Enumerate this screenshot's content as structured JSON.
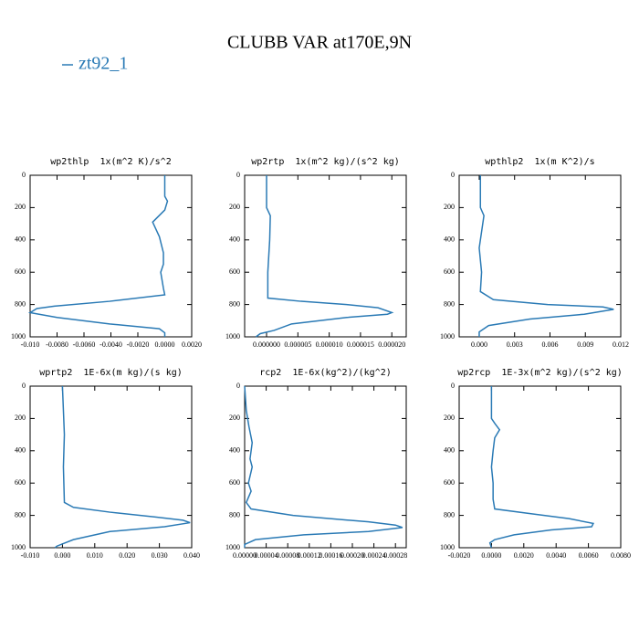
{
  "title": "CLUBB VAR at170E,9N",
  "chart_data": [
    {
      "type": "line",
      "title": "wp2thlp  1x(m^2 K)/s^2",
      "y": [
        0,
        130,
        160,
        215,
        290,
        380,
        480,
        550,
        600,
        700,
        740,
        780,
        810,
        825,
        850,
        880,
        920,
        950,
        975,
        1000
      ],
      "series": [
        {
          "name": "zt92_1",
          "color": "#2a7ab5",
          "values": [
            0,
            0,
            0.0002,
            0,
            -0.0009,
            -0.0004,
            -0.0001,
            -0.0001,
            -0.0003,
            -0.0001,
            0,
            -0.0041,
            -0.0082,
            -0.0095,
            -0.01,
            -0.008,
            -0.0041,
            -0.0004,
            0,
            0
          ]
        }
      ],
      "xlim": [
        -0.01,
        0.002
      ],
      "xticks": [
        {
          "value": -0.01,
          "label": "-0.010"
        },
        {
          "value": -0.008,
          "label": "-0.0080"
        },
        {
          "value": -0.006,
          "label": "-0.0060"
        },
        {
          "value": -0.004,
          "label": "-0.0040"
        },
        {
          "value": -0.002,
          "label": "-0.0020"
        },
        {
          "value": 0,
          "label": "0.0000"
        },
        {
          "value": 0.002,
          "label": "0.0020"
        }
      ],
      "ylim": [
        1000,
        0
      ],
      "yticks": [
        0,
        200,
        400,
        600,
        800,
        1000
      ]
    },
    {
      "type": "line",
      "title": "wp2rtp  1x(m^2 kg)/(s^2 kg)",
      "y": [
        0,
        200,
        250,
        400,
        600,
        760,
        780,
        800,
        820,
        850,
        860,
        880,
        920,
        960,
        980,
        1000
      ],
      "series": [
        {
          "name": "zt92_1",
          "color": "#2a7ab5",
          "values": [
            0,
            0,
            6e-07,
            5e-07,
            2e-07,
            2e-07,
            5.5e-06,
            1.28e-05,
            1.78e-05,
            2e-05,
            1.93e-05,
            1.28e-05,
            4e-06,
            1.2e-06,
            -1e-06,
            -1.7e-06
          ]
        }
      ],
      "xlim": [
        -3.5e-06,
        2.23e-05
      ],
      "xticks": [
        {
          "value": 0,
          "label": "0.000000"
        },
        {
          "value": 5e-06,
          "label": "0.000005"
        },
        {
          "value": 1e-05,
          "label": "0.000010"
        },
        {
          "value": 1.5e-05,
          "label": "0.000015"
        },
        {
          "value": 2e-05,
          "label": "0.000020"
        }
      ],
      "ylim": [
        1000,
        0
      ],
      "yticks": [
        0,
        200,
        400,
        600,
        800,
        1000
      ]
    },
    {
      "type": "line",
      "title": "wpthlp2  1x(m K^2)/s",
      "y": [
        0,
        200,
        250,
        350,
        450,
        600,
        720,
        770,
        800,
        815,
        830,
        860,
        890,
        930,
        970,
        1000
      ],
      "series": [
        {
          "name": "zt92_1",
          "color": "#2a7ab5",
          "values": [
            0.0001,
            0.0001,
            0.0004,
            0.0002,
            0,
            0.0002,
            0.0001,
            0.0012,
            0.0058,
            0.0105,
            0.0114,
            0.0089,
            0.0043,
            0.0008,
            0,
            0
          ]
        }
      ],
      "xlim": [
        -0.0017,
        0.012
      ],
      "xticks": [
        {
          "value": 0,
          "label": "0.000"
        },
        {
          "value": 0.003,
          "label": "0.003"
        },
        {
          "value": 0.006,
          "label": "0.006"
        },
        {
          "value": 0.009,
          "label": "0.009"
        },
        {
          "value": 0.012,
          "label": "0.012"
        }
      ],
      "ylim": [
        1000,
        0
      ],
      "yticks": [
        0,
        200,
        400,
        600,
        800,
        1000
      ]
    },
    {
      "type": "line",
      "title": "wprtp2  1E-6x(m kg)/(s kg)",
      "y": [
        0,
        300,
        500,
        720,
        750,
        780,
        810,
        830,
        845,
        870,
        900,
        950,
        990,
        1000
      ],
      "series": [
        {
          "name": "zt92_1",
          "color": "#2a7ab5",
          "values": [
            0,
            0.0006,
            0.0003,
            0.0006,
            0.0034,
            0.0147,
            0.0288,
            0.0373,
            0.0395,
            0.0316,
            0.0147,
            0.0034,
            -0.0017,
            -0.0023
          ]
        }
      ],
      "xlim": [
        -0.01,
        0.04
      ],
      "xticks": [
        {
          "value": -0.01,
          "label": "-0.010"
        },
        {
          "value": 0,
          "label": "0.000"
        },
        {
          "value": 0.01,
          "label": "0.010"
        },
        {
          "value": 0.02,
          "label": "0.020"
        },
        {
          "value": 0.03,
          "label": "0.030"
        },
        {
          "value": 0.04,
          "label": "0.040"
        }
      ],
      "ylim": [
        1000,
        0
      ],
      "yticks": [
        0,
        200,
        400,
        600,
        800,
        1000
      ]
    },
    {
      "type": "line",
      "title": "rcp2  1E-6x(kg^2)/(kg^2)",
      "y": [
        0,
        150,
        250,
        350,
        450,
        500,
        600,
        650,
        720,
        760,
        800,
        840,
        860,
        875,
        900,
        920,
        950,
        980,
        1000
      ],
      "series": [
        {
          "name": "zt92_1",
          "color": "#2a7ab5",
          "values": [
            0,
            3e-06,
            8e-06,
            1.4e-05,
            1e-05,
            1.4e-05,
            7e-06,
            1.2e-05,
            3e-06,
            1.2e-05,
            9e-05,
            0.00023,
            0.00028,
            0.000293,
            0.00023,
            0.00011,
            2e-05,
            0,
            0
          ]
        }
      ],
      "xlim": [
        0,
        0.0003
      ],
      "xticks": [
        {
          "value": 0,
          "label": "0.00000"
        },
        {
          "value": 4e-05,
          "label": "0.00004"
        },
        {
          "value": 8e-05,
          "label": "0.00008"
        },
        {
          "value": 0.00012,
          "label": "0.00012"
        },
        {
          "value": 0.00016,
          "label": "0.00016"
        },
        {
          "value": 0.0002,
          "label": "0.00020"
        },
        {
          "value": 0.00024,
          "label": "0.00024"
        },
        {
          "value": 0.00028,
          "label": "0.00028"
        }
      ],
      "ylim": [
        1000,
        0
      ],
      "yticks": [
        0,
        200,
        400,
        600,
        800,
        1000
      ]
    },
    {
      "type": "line",
      "title": "wp2rcp  1E-3x(m^2 kg)/(s^2 kg)",
      "y": [
        0,
        200,
        230,
        270,
        320,
        400,
        500,
        600,
        700,
        760,
        790,
        820,
        850,
        870,
        890,
        920,
        950,
        970,
        1000
      ],
      "series": [
        {
          "name": "zt92_1",
          "color": "#2a7ab5",
          "values": [
            0,
            0,
            0.0002,
            0.0005,
            0.0002,
            0.0001,
            0,
            0.0001,
            0.0001,
            0.0002,
            0.0025,
            0.0048,
            0.0063,
            0.0062,
            0.0037,
            0.0014,
            0.0002,
            -0.0001,
            0
          ]
        }
      ],
      "xlim": [
        -0.002,
        0.008
      ],
      "xticks": [
        {
          "value": -0.002,
          "label": "-0.0020"
        },
        {
          "value": 0,
          "label": "0.0000"
        },
        {
          "value": 0.002,
          "label": "0.0020"
        },
        {
          "value": 0.004,
          "label": "0.0040"
        },
        {
          "value": 0.006,
          "label": "0.0060"
        },
        {
          "value": 0.008,
          "label": "0.0080"
        }
      ],
      "ylim": [
        1000,
        0
      ],
      "yticks": [
        0,
        200,
        400,
        600,
        800,
        1000
      ]
    }
  ]
}
